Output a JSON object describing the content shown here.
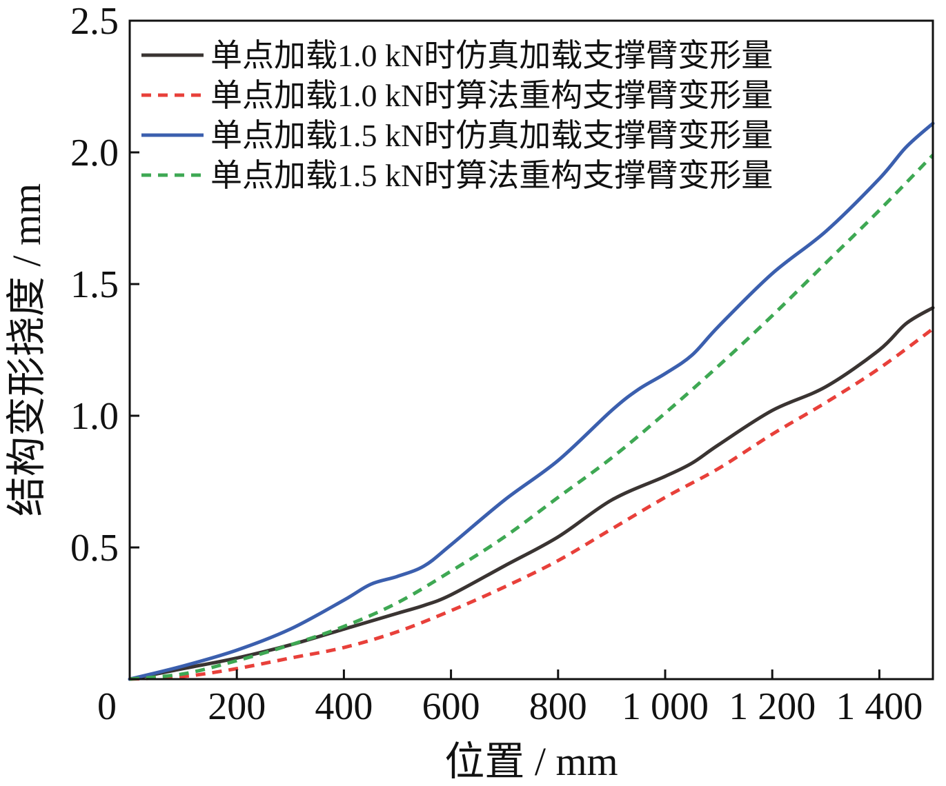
{
  "chart_data": {
    "type": "line",
    "title": "",
    "xlabel": "位置 / mm",
    "ylabel": "结构变形挠度 / mm",
    "xlim": [
      0,
      1500
    ],
    "ylim": [
      0,
      2.5
    ],
    "x_ticks": [
      0,
      200,
      400,
      600,
      800,
      1000,
      1200,
      1400
    ],
    "x_tick_labels": [
      "0",
      "200",
      "400",
      "600",
      "800",
      "1 000",
      "1 200",
      "1 400"
    ],
    "y_ticks": [
      0.5,
      1.0,
      1.5,
      2.0,
      2.5
    ],
    "y_tick_labels": [
      "0.5",
      "1.0",
      "1.5",
      "2.0",
      "2.5"
    ],
    "grid": false,
    "legend_position": "top-right",
    "series": [
      {
        "name": "单点加载1.0 kN时仿真加载支撑臂变形量",
        "color": "#3a3432",
        "dash": "solid",
        "x": [
          0,
          100,
          200,
          300,
          400,
          500,
          550,
          600,
          700,
          800,
          900,
          1000,
          1050,
          1100,
          1200,
          1300,
          1400,
          1450,
          1500
        ],
        "y": [
          0,
          0.04,
          0.08,
          0.13,
          0.19,
          0.25,
          0.28,
          0.32,
          0.43,
          0.54,
          0.68,
          0.77,
          0.82,
          0.89,
          1.02,
          1.11,
          1.25,
          1.35,
          1.41
        ]
      },
      {
        "name": "单点加载1.0 kN时算法重构支撑臂变形量",
        "color": "#e8403a",
        "dash": "dashed",
        "x": [
          0,
          100,
          200,
          300,
          400,
          500,
          600,
          700,
          800,
          900,
          1000,
          1100,
          1200,
          1300,
          1400,
          1500
        ],
        "y": [
          0,
          0.01,
          0.04,
          0.08,
          0.12,
          0.18,
          0.26,
          0.35,
          0.45,
          0.57,
          0.69,
          0.8,
          0.93,
          1.05,
          1.18,
          1.33
        ]
      },
      {
        "name": "单点加载1.5 kN时仿真加载支撑臂变形量",
        "color": "#3b5fae",
        "dash": "solid",
        "x": [
          0,
          100,
          200,
          300,
          400,
          450,
          500,
          550,
          600,
          700,
          800,
          900,
          950,
          1000,
          1050,
          1100,
          1200,
          1300,
          1400,
          1450,
          1500
        ],
        "y": [
          0,
          0.05,
          0.11,
          0.19,
          0.3,
          0.36,
          0.39,
          0.43,
          0.51,
          0.68,
          0.83,
          1.02,
          1.1,
          1.16,
          1.23,
          1.34,
          1.54,
          1.7,
          1.9,
          2.02,
          2.11
        ]
      },
      {
        "name": "单点加载1.5 kN时算法重构支撑臂变形量",
        "color": "#3ea853",
        "dash": "dashed",
        "x": [
          0,
          100,
          200,
          300,
          400,
          500,
          600,
          700,
          800,
          900,
          1000,
          1100,
          1200,
          1300,
          1400,
          1500
        ],
        "y": [
          0,
          0.02,
          0.07,
          0.13,
          0.2,
          0.29,
          0.41,
          0.54,
          0.69,
          0.84,
          1.01,
          1.19,
          1.38,
          1.58,
          1.78,
          1.99
        ]
      }
    ]
  }
}
